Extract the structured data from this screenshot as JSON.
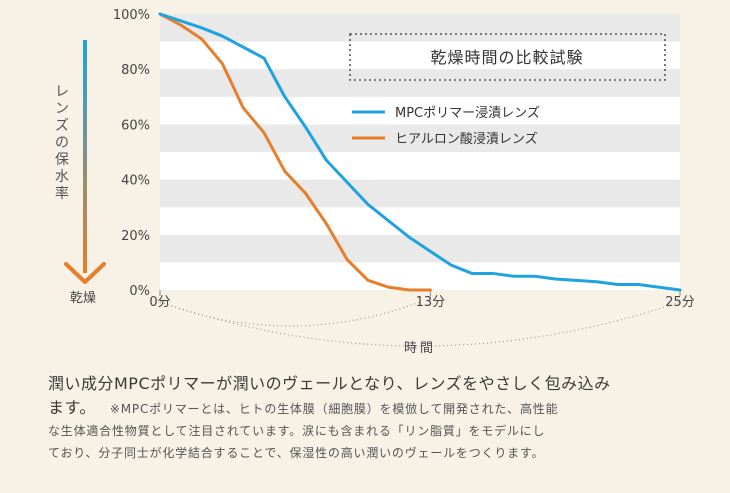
{
  "chart_data": {
    "type": "line",
    "title": "乾燥時間の比較試験",
    "ylabel": "レンズの保水率",
    "y_arrow_label": "乾燥",
    "xlabel": "時間",
    "x_unit": "分",
    "xlim": [
      0,
      25
    ],
    "ylim": [
      0,
      100
    ],
    "yticks": [
      0,
      20,
      40,
      60,
      80,
      100
    ],
    "ytick_labels": [
      "0%",
      "20%",
      "40%",
      "60%",
      "80%",
      "100%"
    ],
    "xticks": [
      0,
      13,
      25
    ],
    "xtick_labels": [
      "0分",
      "13分",
      "25分"
    ],
    "legend_position": "top-right",
    "series": [
      {
        "name": "MPCポリマー浸漬レンズ",
        "color": "#1fa3e0",
        "x": [
          0,
          2,
          3,
          4,
          5,
          6,
          7,
          8,
          9,
          10,
          11,
          12,
          13,
          14,
          15,
          16,
          17,
          18,
          19,
          20,
          21,
          22,
          23,
          24,
          25
        ],
        "y": [
          100,
          95,
          92,
          88,
          84,
          70,
          59,
          47,
          39,
          31,
          25,
          19,
          14,
          9,
          6,
          6,
          5,
          5,
          4,
          3.5,
          3,
          2,
          2,
          1,
          0
        ]
      },
      {
        "name": "ヒアルロン酸浸漬レンズ",
        "color": "#e57f2b",
        "x": [
          0,
          1,
          2,
          3,
          4,
          5,
          6,
          7,
          8,
          9,
          10,
          11,
          12,
          13
        ],
        "y": [
          100,
          96,
          91,
          82,
          66,
          57,
          43,
          35,
          24,
          11,
          3.5,
          1,
          0,
          0
        ]
      }
    ]
  },
  "description": {
    "lead_line1": "潤い成分MPCポリマーが潤いのヴェールとなり、レンズをやさしく包み込み",
    "lead_line2": "ます。",
    "note_line1": "※MPCポリマーとは、ヒトの生体膜（細胞膜）を模倣して開発された、高性能",
    "note_line2": "な生体適合性物質として注目されています。涙にも含まれる「リン脂質」をモデルにし",
    "note_line3": "ており、分子同士が化学結合することで、保湿性の高い潤いのヴェールをつくります。"
  }
}
